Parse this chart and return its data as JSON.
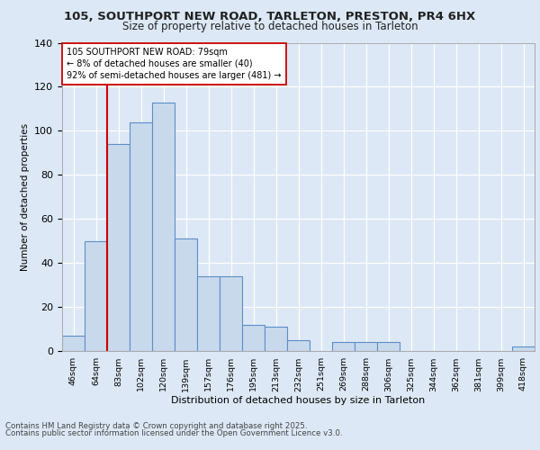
{
  "title1": "105, SOUTHPORT NEW ROAD, TARLETON, PRESTON, PR4 6HX",
  "title2": "Size of property relative to detached houses in Tarleton",
  "xlabel": "Distribution of detached houses by size in Tarleton",
  "ylabel": "Number of detached properties",
  "categories": [
    "46sqm",
    "64sqm",
    "83sqm",
    "102sqm",
    "120sqm",
    "139sqm",
    "157sqm",
    "176sqm",
    "195sqm",
    "213sqm",
    "232sqm",
    "251sqm",
    "269sqm",
    "288sqm",
    "306sqm",
    "325sqm",
    "344sqm",
    "362sqm",
    "381sqm",
    "399sqm",
    "418sqm"
  ],
  "values": [
    7,
    50,
    94,
    104,
    113,
    51,
    34,
    34,
    12,
    11,
    5,
    0,
    4,
    4,
    4,
    0,
    0,
    0,
    0,
    0,
    2
  ],
  "bar_color": "#c9d9ec",
  "bar_edge_color": "#5b8fc9",
  "vline_x": 2.0,
  "vline_color": "#cc0000",
  "annotation_text": "105 SOUTHPORT NEW ROAD: 79sqm\n← 8% of detached houses are smaller (40)\n92% of semi-detached houses are larger (481) →",
  "annotation_box_color": "#ffffff",
  "annotation_box_edge": "#cc0000",
  "ylim": [
    0,
    140
  ],
  "yticks": [
    0,
    20,
    40,
    60,
    80,
    100,
    120,
    140
  ],
  "footer1": "Contains HM Land Registry data © Crown copyright and database right 2025.",
  "footer2": "Contains public sector information licensed under the Open Government Licence v3.0.",
  "bg_color": "#dce8f5",
  "plot_bg_color": "#dce8f5"
}
